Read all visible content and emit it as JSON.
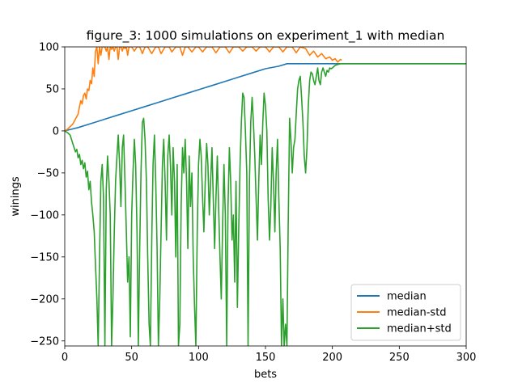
{
  "chart_data": {
    "type": "line",
    "title": "figure_3: 1000 simulations on experiment_1 with median",
    "xlabel": "bets",
    "ylabel": "winings",
    "xlim": [
      0,
      300
    ],
    "ylim": [
      -256,
      100
    ],
    "x_ticks": [
      0,
      50,
      100,
      150,
      200,
      250,
      300
    ],
    "y_ticks": [
      -250,
      -200,
      -150,
      -100,
      -50,
      0,
      50,
      100
    ],
    "x_tick_labels": [
      "0",
      "50",
      "100",
      "150",
      "200",
      "250",
      "300"
    ],
    "y_tick_labels": [
      "−250",
      "−200",
      "−150",
      "−100",
      "−50",
      "0",
      "50",
      "100"
    ],
    "grid": false,
    "legend_position": "lower-right",
    "series": [
      {
        "name": "median",
        "color": "#1f77b4",
        "points": [
          [
            0,
            0
          ],
          [
            10,
            4
          ],
          [
            20,
            9
          ],
          [
            30,
            14
          ],
          [
            40,
            19
          ],
          [
            50,
            24
          ],
          [
            60,
            29
          ],
          [
            70,
            34
          ],
          [
            80,
            39
          ],
          [
            90,
            44
          ],
          [
            100,
            49
          ],
          [
            110,
            54
          ],
          [
            120,
            59
          ],
          [
            130,
            64
          ],
          [
            140,
            69
          ],
          [
            150,
            74
          ],
          [
            160,
            77
          ],
          [
            166,
            80
          ],
          [
            175,
            80
          ],
          [
            200,
            80
          ],
          [
            250,
            80
          ],
          [
            300,
            80
          ]
        ]
      },
      {
        "name": "median-std",
        "color": "#ff7f0e",
        "points": [
          [
            0,
            0
          ],
          [
            2,
            2
          ],
          [
            4,
            5
          ],
          [
            6,
            8
          ],
          [
            8,
            14
          ],
          [
            10,
            20
          ],
          [
            11,
            29
          ],
          [
            12,
            36
          ],
          [
            13,
            32
          ],
          [
            14,
            42
          ],
          [
            15,
            45
          ],
          [
            16,
            38
          ],
          [
            17,
            50
          ],
          [
            18,
            48
          ],
          [
            19,
            60
          ],
          [
            20,
            56
          ],
          [
            21,
            75
          ],
          [
            22,
            65
          ],
          [
            23,
            95
          ],
          [
            24,
            100
          ],
          [
            25,
            80
          ],
          [
            26,
            100
          ],
          [
            27,
            90
          ],
          [
            28,
            100
          ],
          [
            29,
            100
          ],
          [
            30,
            100
          ],
          [
            31,
            95
          ],
          [
            32,
            100
          ],
          [
            33,
            85
          ],
          [
            34,
            100
          ],
          [
            35,
            97
          ],
          [
            36,
            100
          ],
          [
            37,
            95
          ],
          [
            38,
            100
          ],
          [
            39,
            100
          ],
          [
            40,
            85
          ],
          [
            41,
            100
          ],
          [
            42,
            100
          ],
          [
            43,
            95
          ],
          [
            44,
            100
          ],
          [
            45,
            98
          ],
          [
            46,
            100
          ],
          [
            47,
            90
          ],
          [
            48,
            100
          ],
          [
            49,
            100
          ],
          [
            50,
            100
          ],
          [
            52,
            95
          ],
          [
            54,
            100
          ],
          [
            56,
            100
          ],
          [
            58,
            92
          ],
          [
            60,
            100
          ],
          [
            62,
            100
          ],
          [
            65,
            92
          ],
          [
            68,
            100
          ],
          [
            70,
            100
          ],
          [
            72,
            92
          ],
          [
            75,
            100
          ],
          [
            78,
            100
          ],
          [
            80,
            94
          ],
          [
            83,
            100
          ],
          [
            86,
            100
          ],
          [
            88,
            90
          ],
          [
            90,
            100
          ],
          [
            92,
            100
          ],
          [
            95,
            94
          ],
          [
            98,
            100
          ],
          [
            100,
            100
          ],
          [
            103,
            94
          ],
          [
            106,
            100
          ],
          [
            110,
            100
          ],
          [
            113,
            93
          ],
          [
            116,
            100
          ],
          [
            120,
            100
          ],
          [
            123,
            93
          ],
          [
            126,
            100
          ],
          [
            130,
            100
          ],
          [
            133,
            95
          ],
          [
            136,
            100
          ],
          [
            140,
            100
          ],
          [
            143,
            95
          ],
          [
            146,
            100
          ],
          [
            150,
            100
          ],
          [
            153,
            94
          ],
          [
            156,
            100
          ],
          [
            160,
            100
          ],
          [
            163,
            94
          ],
          [
            166,
            100
          ],
          [
            170,
            100
          ],
          [
            173,
            93
          ],
          [
            176,
            100
          ],
          [
            180,
            98
          ],
          [
            183,
            90
          ],
          [
            186,
            95
          ],
          [
            189,
            88
          ],
          [
            192,
            92
          ],
          [
            195,
            86
          ],
          [
            198,
            88
          ],
          [
            200,
            84
          ],
          [
            202,
            86
          ],
          [
            204,
            82
          ],
          [
            206,
            85
          ],
          [
            207,
            84
          ]
        ]
      },
      {
        "name": "median+std",
        "color": "#2ca02c",
        "points": [
          [
            0,
            0
          ],
          [
            2,
            -2
          ],
          [
            4,
            -5
          ],
          [
            5,
            -10
          ],
          [
            6,
            -15
          ],
          [
            7,
            -20
          ],
          [
            8,
            -25
          ],
          [
            9,
            -22
          ],
          [
            10,
            -32
          ],
          [
            11,
            -28
          ],
          [
            12,
            -40
          ],
          [
            13,
            -35
          ],
          [
            14,
            -45
          ],
          [
            15,
            -38
          ],
          [
            16,
            -55
          ],
          [
            17,
            -48
          ],
          [
            18,
            -70
          ],
          [
            19,
            -60
          ],
          [
            20,
            -85
          ],
          [
            21,
            -100
          ],
          [
            22,
            -120
          ],
          [
            23,
            -160
          ],
          [
            24,
            -200
          ],
          [
            25,
            -256
          ],
          [
            26,
            -150
          ],
          [
            27,
            -60
          ],
          [
            28,
            -40
          ],
          [
            29,
            -80
          ],
          [
            30,
            -256
          ],
          [
            31,
            -70
          ],
          [
            32,
            -30
          ],
          [
            33,
            -60
          ],
          [
            34,
            -100
          ],
          [
            35,
            -256
          ],
          [
            36,
            -200
          ],
          [
            37,
            -120
          ],
          [
            38,
            -60
          ],
          [
            39,
            -30
          ],
          [
            40,
            -5
          ],
          [
            41,
            -40
          ],
          [
            42,
            -90
          ],
          [
            43,
            -20
          ],
          [
            44,
            -5
          ],
          [
            45,
            -60
          ],
          [
            46,
            -120
          ],
          [
            47,
            -180
          ],
          [
            48,
            -150
          ],
          [
            49,
            -245
          ],
          [
            50,
            -100
          ],
          [
            51,
            -50
          ],
          [
            52,
            -10
          ],
          [
            53,
            -40
          ],
          [
            54,
            -120
          ],
          [
            55,
            -256
          ],
          [
            56,
            -140
          ],
          [
            57,
            -50
          ],
          [
            58,
            10
          ],
          [
            59,
            15
          ],
          [
            60,
            -10
          ],
          [
            61,
            -60
          ],
          [
            62,
            -150
          ],
          [
            63,
            -230
          ],
          [
            64,
            -256
          ],
          [
            65,
            -130
          ],
          [
            66,
            -40
          ],
          [
            67,
            -5
          ],
          [
            68,
            -60
          ],
          [
            69,
            -140
          ],
          [
            70,
            -256
          ],
          [
            71,
            -200
          ],
          [
            72,
            -120
          ],
          [
            73,
            -40
          ],
          [
            74,
            -10
          ],
          [
            75,
            -60
          ],
          [
            76,
            -130
          ],
          [
            77,
            -30
          ],
          [
            78,
            -5
          ],
          [
            79,
            -40
          ],
          [
            80,
            -100
          ],
          [
            81,
            -20
          ],
          [
            82,
            -60
          ],
          [
            83,
            -150
          ],
          [
            84,
            -40
          ],
          [
            85,
            -256
          ],
          [
            86,
            -230
          ],
          [
            87,
            -90
          ],
          [
            88,
            -20
          ],
          [
            89,
            -50
          ],
          [
            90,
            -10
          ],
          [
            91,
            -60
          ],
          [
            92,
            -140
          ],
          [
            93,
            -30
          ],
          [
            94,
            -90
          ],
          [
            95,
            -50
          ],
          [
            96,
            -150
          ],
          [
            97,
            -210
          ],
          [
            98,
            -256
          ],
          [
            99,
            -120
          ],
          [
            100,
            -40
          ],
          [
            101,
            -10
          ],
          [
            102,
            -30
          ],
          [
            103,
            -80
          ],
          [
            104,
            -120
          ],
          [
            105,
            -60
          ],
          [
            106,
            -15
          ],
          [
            107,
            -40
          ],
          [
            108,
            -100
          ],
          [
            109,
            -60
          ],
          [
            110,
            -20
          ],
          [
            111,
            -80
          ],
          [
            112,
            -140
          ],
          [
            113,
            -80
          ],
          [
            114,
            -30
          ],
          [
            115,
            -90
          ],
          [
            116,
            -150
          ],
          [
            117,
            -200
          ],
          [
            118,
            -110
          ],
          [
            119,
            -40
          ],
          [
            120,
            -100
          ],
          [
            121,
            -256
          ],
          [
            122,
            -90
          ],
          [
            123,
            -20
          ],
          [
            124,
            -60
          ],
          [
            125,
            -130
          ],
          [
            126,
            -100
          ],
          [
            127,
            -180
          ],
          [
            128,
            -60
          ],
          [
            129,
            -210
          ],
          [
            130,
            -120
          ],
          [
            131,
            -40
          ],
          [
            132,
            10
          ],
          [
            133,
            45
          ],
          [
            134,
            40
          ],
          [
            135,
            0
          ],
          [
            136,
            -50
          ],
          [
            137,
            -256
          ],
          [
            138,
            -60
          ],
          [
            139,
            10
          ],
          [
            140,
            40
          ],
          [
            141,
            10
          ],
          [
            142,
            -30
          ],
          [
            143,
            -80
          ],
          [
            144,
            -130
          ],
          [
            145,
            -60
          ],
          [
            146,
            -5
          ],
          [
            147,
            -40
          ],
          [
            148,
            10
          ],
          [
            149,
            45
          ],
          [
            150,
            30
          ],
          [
            151,
            0
          ],
          [
            152,
            -80
          ],
          [
            153,
            -130
          ],
          [
            154,
            -90
          ],
          [
            155,
            -20
          ],
          [
            156,
            -60
          ],
          [
            157,
            -120
          ],
          [
            158,
            -50
          ],
          [
            159,
            -10
          ],
          [
            160,
            -80
          ],
          [
            161,
            -140
          ],
          [
            162,
            -256
          ],
          [
            163,
            -200
          ],
          [
            164,
            -256
          ],
          [
            165,
            -230
          ],
          [
            166,
            -256
          ],
          [
            167,
            -110
          ],
          [
            168,
            15
          ],
          [
            169,
            -10
          ],
          [
            170,
            -50
          ],
          [
            171,
            -20
          ],
          [
            172,
            -10
          ],
          [
            173,
            20
          ],
          [
            174,
            50
          ],
          [
            175,
            60
          ],
          [
            176,
            65
          ],
          [
            177,
            40
          ],
          [
            178,
            10
          ],
          [
            179,
            -30
          ],
          [
            180,
            -50
          ],
          [
            181,
            -20
          ],
          [
            182,
            30
          ],
          [
            183,
            60
          ],
          [
            184,
            70
          ],
          [
            185,
            68
          ],
          [
            186,
            60
          ],
          [
            187,
            55
          ],
          [
            188,
            65
          ],
          [
            189,
            75
          ],
          [
            190,
            60
          ],
          [
            191,
            55
          ],
          [
            192,
            70
          ],
          [
            193,
            75
          ],
          [
            194,
            70
          ],
          [
            195,
            65
          ],
          [
            196,
            72
          ],
          [
            197,
            70
          ],
          [
            198,
            75
          ],
          [
            199,
            74
          ],
          [
            200,
            75
          ],
          [
            202,
            78
          ],
          [
            204,
            79
          ],
          [
            206,
            80
          ],
          [
            210,
            80
          ],
          [
            250,
            80
          ],
          [
            300,
            80
          ]
        ]
      }
    ]
  }
}
